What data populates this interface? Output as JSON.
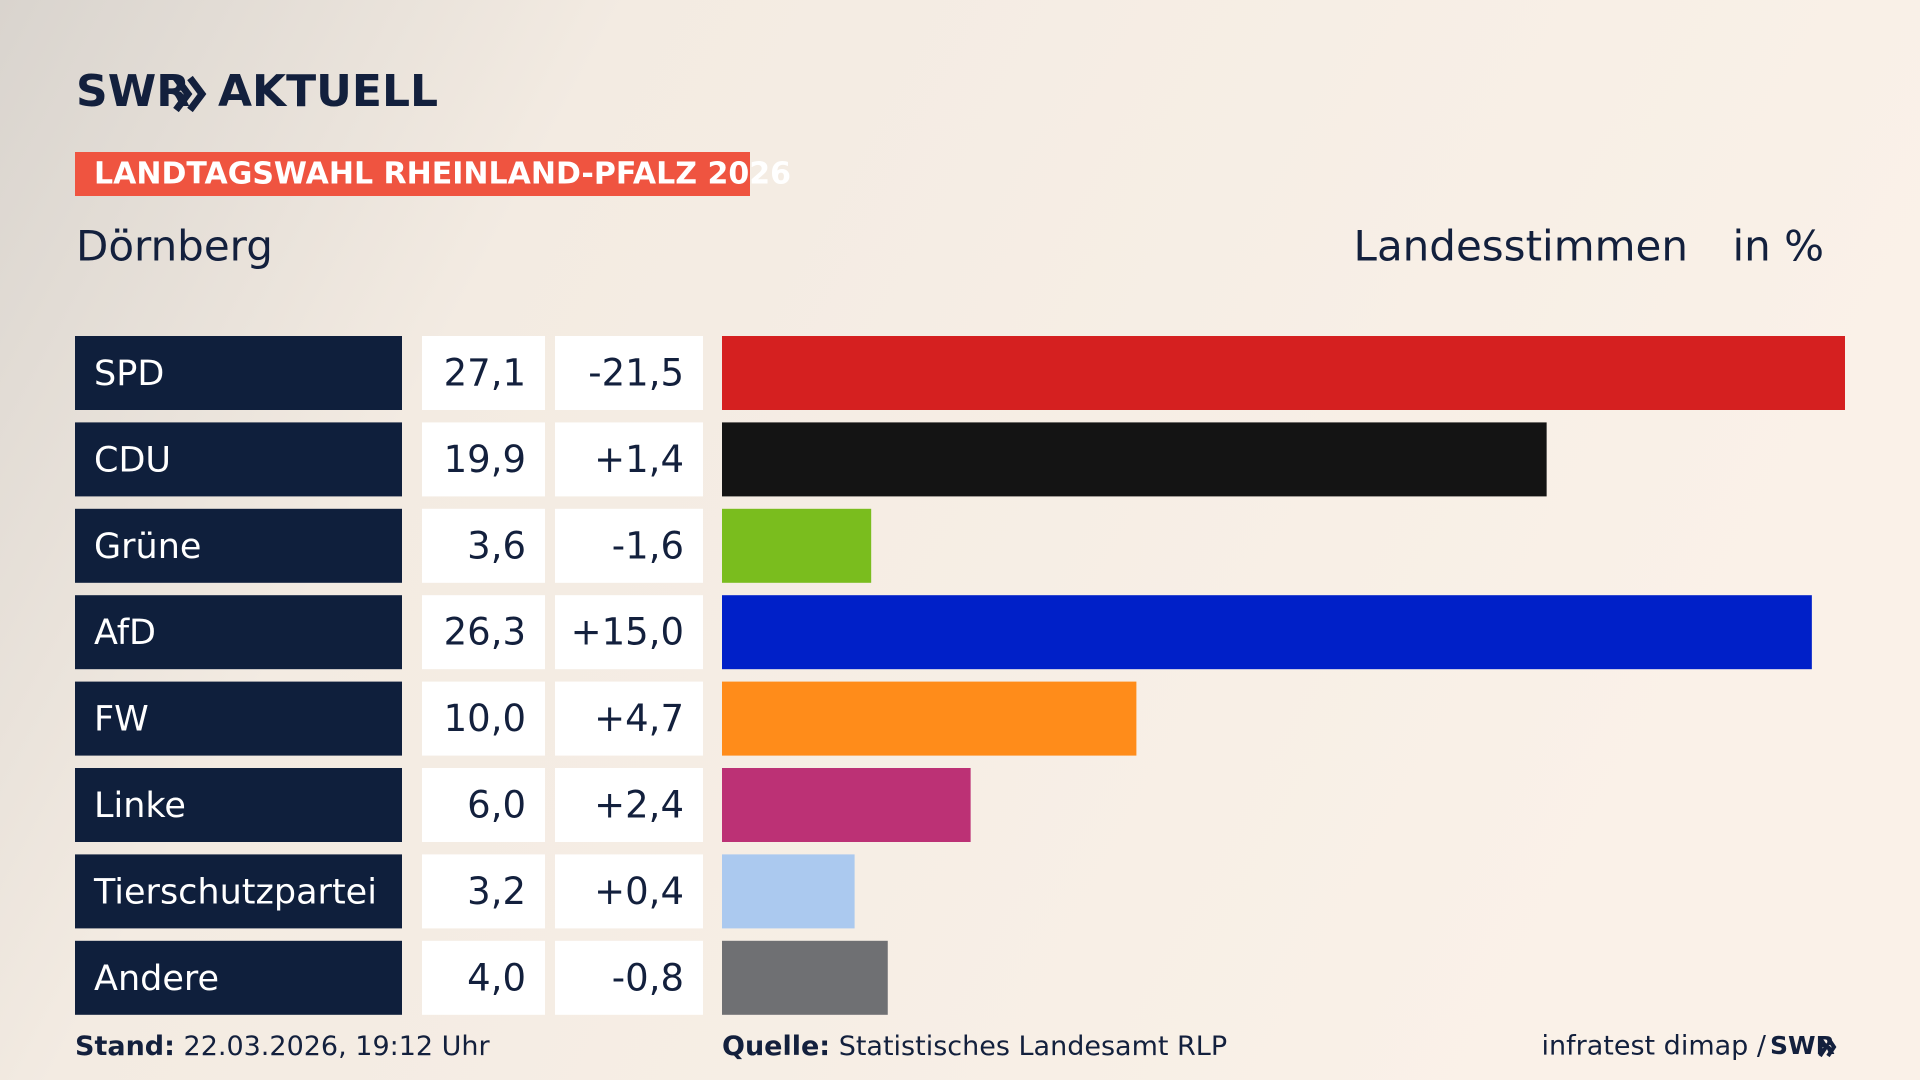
{
  "chart_data": {
    "type": "bar",
    "brand": "SWR",
    "brand_suffix": "AKTUELL",
    "title": "LANDTAGSWAHL RHEINLAND-PFALZ 2026",
    "subtitle": "Dörnberg",
    "measure": "Landesstimmen",
    "unit": "in %",
    "categories": [
      "SPD",
      "CDU",
      "Grüne",
      "AfD",
      "FW",
      "Linke",
      "Tierschutzpartei",
      "Andere"
    ],
    "values": [
      27.1,
      19.9,
      3.6,
      26.3,
      10.0,
      6.0,
      3.2,
      4.0
    ],
    "value_labels": [
      "27,1",
      "19,9",
      "3,6",
      "26,3",
      "10,0",
      "6,0",
      "3,2",
      "4,0"
    ],
    "changes": [
      -21.5,
      1.4,
      -1.6,
      15.0,
      4.7,
      2.4,
      0.4,
      -0.8
    ],
    "change_labels": [
      "-21,5",
      "+1,4",
      "-1,6",
      "+15,0",
      "+4,7",
      "+2,4",
      "+0,4",
      "-0,8"
    ],
    "colors": [
      "#d52020",
      "#141414",
      "#7abd1e",
      "#0020c8",
      "#ff8c1a",
      "#bc3175",
      "#abc9ef",
      "#6f7073"
    ],
    "xlim": [
      0,
      27.1
    ],
    "footer": {
      "stand_label": "Stand:",
      "stand": "22.03.2026, 19:12 Uhr",
      "source_label": "Quelle:",
      "source": "Statistisches Landesamt RLP",
      "credit": "infratest dimap /",
      "credit_brand": "SWR"
    }
  }
}
